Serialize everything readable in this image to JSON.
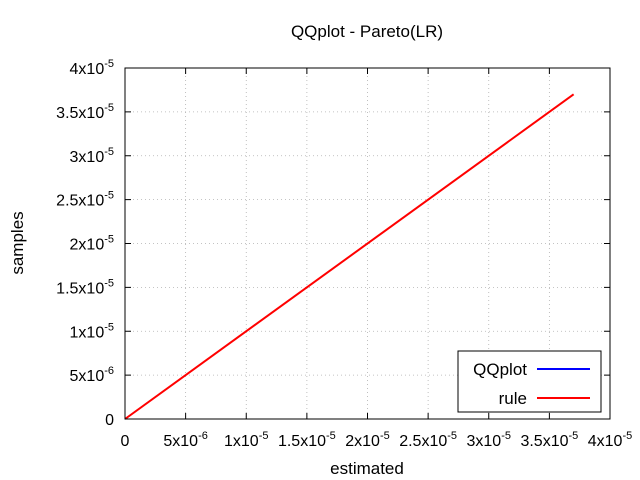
{
  "chart_data": {
    "type": "line",
    "title": "QQplot - Pareto(LR)",
    "xlabel": "estimated",
    "ylabel": "samples",
    "xlim": [
      0,
      4e-05
    ],
    "ylim": [
      0,
      4e-05
    ],
    "grid": true,
    "legend_position": "bottom-right",
    "x_ticks": [
      {
        "value": 0,
        "mantissa": "0",
        "exp": ""
      },
      {
        "value": 5e-06,
        "mantissa": "5x10",
        "exp": "-6"
      },
      {
        "value": 1e-05,
        "mantissa": "1x10",
        "exp": "-5"
      },
      {
        "value": 1.5e-05,
        "mantissa": "1.5x10",
        "exp": "-5"
      },
      {
        "value": 2e-05,
        "mantissa": "2x10",
        "exp": "-5"
      },
      {
        "value": 2.5e-05,
        "mantissa": "2.5x10",
        "exp": "-5"
      },
      {
        "value": 3e-05,
        "mantissa": "3x10",
        "exp": "-5"
      },
      {
        "value": 3.5e-05,
        "mantissa": "3.5x10",
        "exp": "-5"
      },
      {
        "value": 4e-05,
        "mantissa": "4x10",
        "exp": "-5"
      }
    ],
    "y_ticks": [
      {
        "value": 0,
        "mantissa": "0",
        "exp": ""
      },
      {
        "value": 5e-06,
        "mantissa": "5x10",
        "exp": "-6"
      },
      {
        "value": 1e-05,
        "mantissa": "1x10",
        "exp": "-5"
      },
      {
        "value": 1.5e-05,
        "mantissa": "1.5x10",
        "exp": "-5"
      },
      {
        "value": 2e-05,
        "mantissa": "2x10",
        "exp": "-5"
      },
      {
        "value": 2.5e-05,
        "mantissa": "2.5x10",
        "exp": "-5"
      },
      {
        "value": 3e-05,
        "mantissa": "3x10",
        "exp": "-5"
      },
      {
        "value": 3.5e-05,
        "mantissa": "3.5x10",
        "exp": "-5"
      },
      {
        "value": 4e-05,
        "mantissa": "4x10",
        "exp": "-5"
      }
    ],
    "series": [
      {
        "name": "QQplot",
        "color": "#0000ff",
        "x": [],
        "y": []
      },
      {
        "name": "rule",
        "color": "#ff0000",
        "x": [
          0,
          3.7e-05
        ],
        "y": [
          0,
          3.7e-05
        ]
      }
    ]
  }
}
